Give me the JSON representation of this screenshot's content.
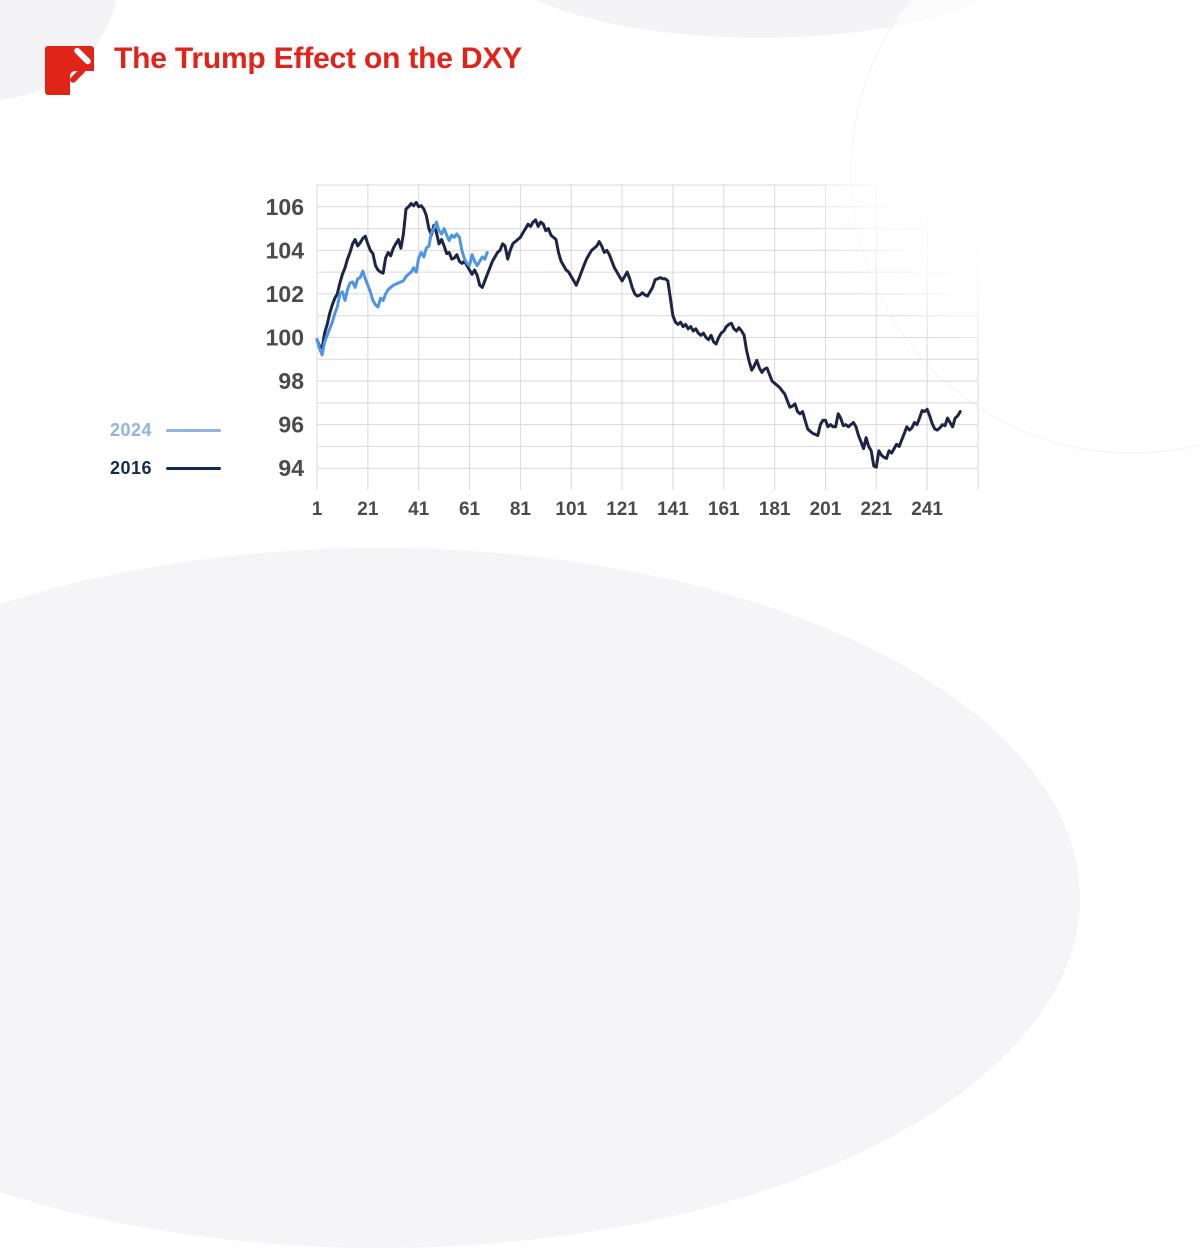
{
  "header": {
    "title": "The Trump Effect on the DXY",
    "title_color": "#E2231A",
    "logo_icon": "chart-slash-logo-icon",
    "logo_color": "#E02418"
  },
  "legend": {
    "items": [
      {
        "label": "2024",
        "color": "#8FB3E3"
      },
      {
        "label": "2016",
        "color": "#152A52"
      }
    ]
  },
  "chart_data": {
    "type": "line",
    "title": "The Trump Effect on the DXY",
    "xlabel": "",
    "ylabel": "",
    "x_ticks": [
      1,
      21,
      41,
      61,
      81,
      101,
      121,
      141,
      161,
      181,
      201,
      221,
      241
    ],
    "y_ticks": [
      106,
      104,
      102,
      100,
      98,
      96,
      94
    ],
    "xlim": [
      1,
      261
    ],
    "ylim": [
      93,
      107
    ],
    "grid": true,
    "gridline_color": "#D9D9DC",
    "legend_position": "left",
    "series": [
      {
        "name": "2016",
        "color": "#1D2547",
        "x_start": 1,
        "x_step": 1,
        "values": [
          99.9,
          99.6,
          99.5,
          100.2,
          100.6,
          101.1,
          101.5,
          101.8,
          102.0,
          102.5,
          102.9,
          103.2,
          103.6,
          103.9,
          104.3,
          104.5,
          104.2,
          104.35,
          104.55,
          104.65,
          104.3,
          104.0,
          103.85,
          103.3,
          103.1,
          103.0,
          102.95,
          103.65,
          103.9,
          103.75,
          104.1,
          104.3,
          104.5,
          104.1,
          104.75,
          105.9,
          106.0,
          106.15,
          106.05,
          106.2,
          106.0,
          106.05,
          105.9,
          105.6,
          105.0,
          104.7,
          105.15,
          104.8,
          104.3,
          104.5,
          104.2,
          103.85,
          103.9,
          103.6,
          103.65,
          103.8,
          103.5,
          103.4,
          103.5,
          103.3,
          103.1,
          102.9,
          103.1,
          102.85,
          102.4,
          102.3,
          102.6,
          102.9,
          103.2,
          103.5,
          103.7,
          103.9,
          104.0,
          104.3,
          104.2,
          103.6,
          104.0,
          104.3,
          104.4,
          104.5,
          104.6,
          104.8,
          105.0,
          105.2,
          105.1,
          105.3,
          105.4,
          105.1,
          105.3,
          105.2,
          104.9,
          105.0,
          104.7,
          104.6,
          104.5,
          103.9,
          103.5,
          103.3,
          103.1,
          103.0,
          102.8,
          102.6,
          102.4,
          102.7,
          103.0,
          103.3,
          103.6,
          103.8,
          104.0,
          104.1,
          104.2,
          104.4,
          104.2,
          103.9,
          104.0,
          103.8,
          103.5,
          103.2,
          103.0,
          102.8,
          102.6,
          102.8,
          103.0,
          102.7,
          102.3,
          102.0,
          101.9,
          101.95,
          102.05,
          101.95,
          101.9,
          102.1,
          102.3,
          102.65,
          102.7,
          102.75,
          102.7,
          102.7,
          102.6,
          101.8,
          101.0,
          100.7,
          100.6,
          100.7,
          100.5,
          100.6,
          100.4,
          100.5,
          100.3,
          100.4,
          100.2,
          100.1,
          100.2,
          100.0,
          99.9,
          100.1,
          99.8,
          99.7,
          100.0,
          100.2,
          100.3,
          100.5,
          100.6,
          100.65,
          100.4,
          100.3,
          100.45,
          100.3,
          100.1,
          99.4,
          98.9,
          98.5,
          98.7,
          98.95,
          98.6,
          98.4,
          98.55,
          98.6,
          98.3,
          98.0,
          97.9,
          97.8,
          97.7,
          97.55,
          97.4,
          97.1,
          96.8,
          96.85,
          96.95,
          96.6,
          96.5,
          96.6,
          96.2,
          95.8,
          95.7,
          95.6,
          95.55,
          95.5,
          96.0,
          96.2,
          96.2,
          95.9,
          96.0,
          95.9,
          95.9,
          96.5,
          96.3,
          95.95,
          96.0,
          95.9,
          96.0,
          96.1,
          95.9,
          95.5,
          95.2,
          94.9,
          95.4,
          95.0,
          94.8,
          94.1,
          94.05,
          94.8,
          94.6,
          94.5,
          94.45,
          94.8,
          94.7,
          94.9,
          95.1,
          95.0,
          95.3,
          95.6,
          95.9,
          95.75,
          95.85,
          96.1,
          96.0,
          96.3,
          96.65,
          96.6,
          96.7,
          96.4,
          96.05,
          95.8,
          95.75,
          95.85,
          96.0,
          95.95,
          96.3,
          96.1,
          95.9,
          96.3,
          96.4,
          96.6
        ]
      },
      {
        "name": "2024",
        "color": "#4E95E6",
        "x_start": 1,
        "x_step": 1,
        "values": [
          99.9,
          99.5,
          99.2,
          99.8,
          100.1,
          100.4,
          100.7,
          101.1,
          101.4,
          102.0,
          102.1,
          101.7,
          102.2,
          102.5,
          102.55,
          102.3,
          102.7,
          102.75,
          103.05,
          102.7,
          102.4,
          102.1,
          101.7,
          101.5,
          101.4,
          101.8,
          101.7,
          102.0,
          102.2,
          102.3,
          102.4,
          102.45,
          102.5,
          102.55,
          102.6,
          102.8,
          102.9,
          103.0,
          103.2,
          103.0,
          103.65,
          103.9,
          103.7,
          104.1,
          104.2,
          104.8,
          105.0,
          105.3,
          104.9,
          104.75,
          105.0,
          104.7,
          104.45,
          104.7,
          104.6,
          104.75,
          104.6,
          104.0,
          103.6,
          103.4,
          103.3,
          103.8,
          103.5,
          103.3,
          103.5,
          103.7,
          103.6,
          103.9
        ]
      }
    ]
  }
}
